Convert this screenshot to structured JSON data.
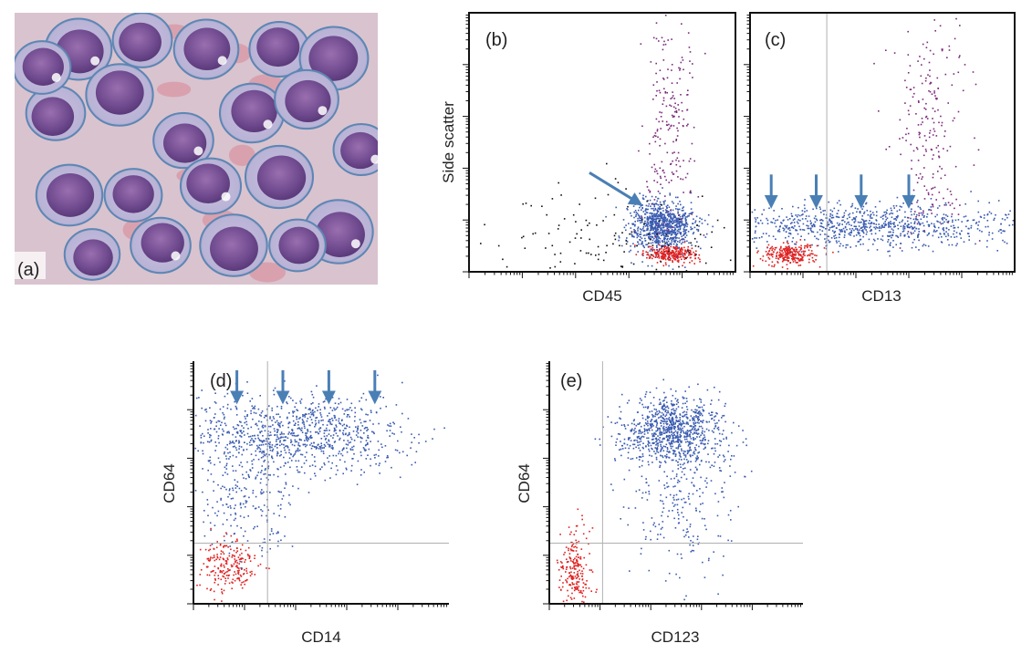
{
  "figure": {
    "panels": [
      {
        "id": "a",
        "label": "(a)",
        "type": "micrograph"
      },
      {
        "id": "b",
        "label": "(b)",
        "xlabel": "CD45",
        "ylabel": "Side scatter"
      },
      {
        "id": "c",
        "label": "(c)",
        "xlabel": "CD13",
        "ylabel": ""
      },
      {
        "id": "d",
        "label": "(d)",
        "xlabel": "CD14",
        "ylabel": "CD64"
      },
      {
        "id": "e",
        "label": "(e)",
        "xlabel": "CD123",
        "ylabel": "CD64"
      }
    ]
  },
  "colors": {
    "blast_population": "#3a5bb0",
    "lymphocytes": "#e02020",
    "granulocytes": "#7a2a7a",
    "other_events": "#111111",
    "arrow": "#4a7fb5",
    "gate_line": "#b0b0b0"
  },
  "chart_data": [
    {
      "panel": "b",
      "type": "scatter",
      "title": "",
      "xlabel": "CD45",
      "ylabel": "Side scatter",
      "x_scale": "log",
      "xlim": [
        0,
        1
      ],
      "ylim": [
        0,
        1
      ],
      "grid": false,
      "series": [
        {
          "color": "#3a5bb0",
          "center": [
            0.72,
            0.18
          ],
          "spread": [
            0.06,
            0.05
          ]
        },
        {
          "color": "#e02020",
          "center": [
            0.76,
            0.07
          ],
          "spread": [
            0.05,
            0.015
          ]
        },
        {
          "color": "#7a2a7a",
          "center": [
            0.75,
            0.6
          ],
          "spread": [
            0.05,
            0.22
          ]
        },
        {
          "color": "#111111",
          "center": [
            0.5,
            0.12
          ],
          "spread": [
            0.25,
            0.1
          ]
        }
      ],
      "arrows": [
        {
          "target": [
            0.63,
            0.27
          ]
        }
      ]
    },
    {
      "panel": "c",
      "type": "scatter",
      "title": "",
      "xlabel": "CD13",
      "ylabel": "",
      "x_scale": "log",
      "xlim": [
        0,
        1
      ],
      "ylim": [
        0,
        1
      ],
      "grid": false,
      "quadrant_x": 0.29,
      "series": [
        {
          "color": "#3a5bb0",
          "center": [
            0.45,
            0.18
          ],
          "spread": [
            0.3,
            0.04
          ]
        },
        {
          "color": "#e02020",
          "center": [
            0.15,
            0.07
          ],
          "spread": [
            0.05,
            0.02
          ]
        },
        {
          "color": "#7a2a7a",
          "center": [
            0.68,
            0.55
          ],
          "spread": [
            0.07,
            0.22
          ]
        }
      ],
      "arrows": [
        {
          "target": [
            0.08,
            0.27
          ]
        },
        {
          "target": [
            0.25,
            0.27
          ]
        },
        {
          "target": [
            0.42,
            0.27
          ]
        },
        {
          "target": [
            0.6,
            0.27
          ]
        }
      ]
    },
    {
      "panel": "d",
      "type": "scatter",
      "title": "",
      "xlabel": "CD14",
      "ylabel": "CD64",
      "x_scale": "log",
      "y_scale": "log",
      "xlim": [
        0,
        1
      ],
      "ylim": [
        0,
        1
      ],
      "grid": false,
      "quadrant_x": 0.29,
      "quadrant_y": 0.25,
      "series": [
        {
          "color": "#3a5bb0",
          "center": [
            0.4,
            0.7
          ],
          "spread": [
            0.2,
            0.08
          ]
        },
        {
          "color": "#3a5bb0",
          "center": [
            0.2,
            0.45
          ],
          "spread": [
            0.1,
            0.15
          ]
        },
        {
          "color": "#e02020",
          "center": [
            0.13,
            0.15
          ],
          "spread": [
            0.06,
            0.06
          ]
        }
      ],
      "arrows": [
        {
          "target": [
            0.17,
            0.85
          ]
        },
        {
          "target": [
            0.35,
            0.85
          ]
        },
        {
          "target": [
            0.53,
            0.85
          ]
        },
        {
          "target": [
            0.71,
            0.85
          ]
        }
      ]
    },
    {
      "panel": "e",
      "type": "scatter",
      "title": "",
      "xlabel": "CD123",
      "ylabel": "CD64",
      "x_scale": "log",
      "y_scale": "log",
      "xlim": [
        0,
        1
      ],
      "ylim": [
        0,
        1
      ],
      "grid": false,
      "quadrant_x": 0.21,
      "quadrant_y": 0.25,
      "series": [
        {
          "color": "#3a5bb0",
          "center": [
            0.48,
            0.72
          ],
          "spread": [
            0.1,
            0.07
          ]
        },
        {
          "color": "#3a5bb0",
          "center": [
            0.52,
            0.45
          ],
          "spread": [
            0.1,
            0.15
          ]
        },
        {
          "color": "#e02020",
          "center": [
            0.1,
            0.15
          ],
          "spread": [
            0.03,
            0.08
          ]
        }
      ]
    }
  ]
}
